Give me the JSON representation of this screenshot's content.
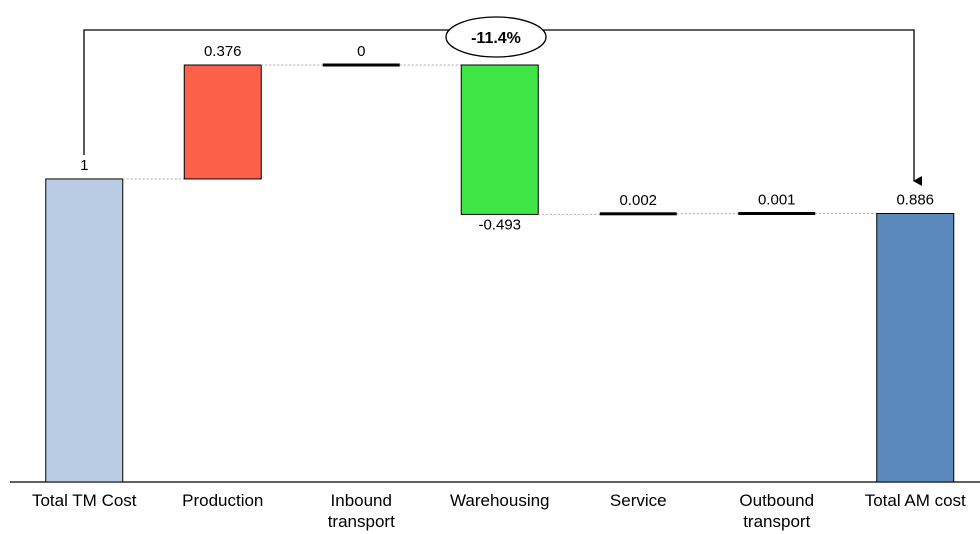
{
  "chart_data": {
    "type": "waterfall",
    "categories": [
      "Total TM Cost",
      "Production",
      "Inbound\ntransport",
      "Warehousing",
      "Service",
      "Outbound\ntransport",
      "Total AM cost"
    ],
    "values": [
      1,
      0.376,
      0,
      -0.493,
      0.002,
      0.001,
      0.886
    ],
    "totals": [
      0,
      6
    ],
    "colors": [
      "#b9cce4",
      "#fe614a",
      "#40e645",
      "#5b8bbe"
    ],
    "annotation": "-11.4%"
  }
}
